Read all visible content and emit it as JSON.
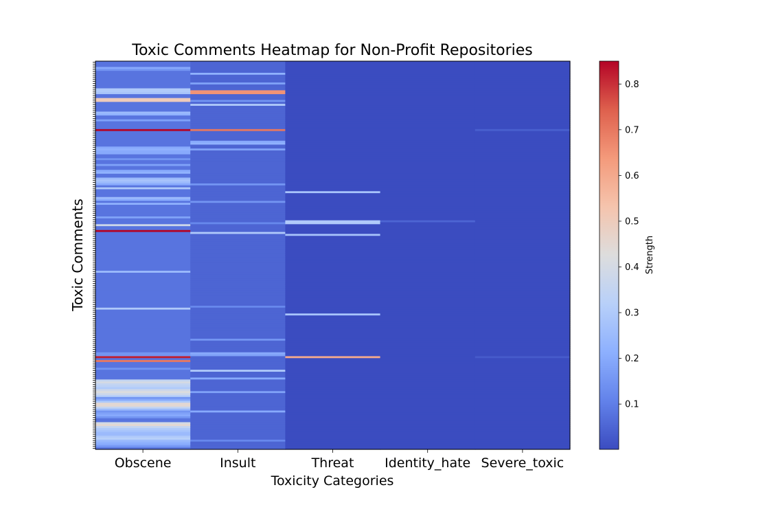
{
  "chart_data": {
    "type": "heatmap",
    "title": "Toxic Comments Heatmap for Non-Profit Repositories",
    "xlabel": "Toxicity Categories",
    "ylabel": "Toxic Comments",
    "categories": [
      "Obscene",
      "Insult",
      "Threat",
      "Identity_hate",
      "Severe_toxic"
    ],
    "colorbar": {
      "label": "Strength",
      "range": [
        0.001,
        0.85
      ],
      "ticks": [
        "0.1",
        "0.2",
        "0.3",
        "0.4",
        "0.5",
        "0.6",
        "0.7",
        "0.8"
      ],
      "colormap": "coolwarm"
    },
    "n_rows": 200,
    "base_values": [
      0.08,
      0.05,
      0.001,
      0.001,
      0.001
    ],
    "highlights": {
      "Obscene": [
        [
          3,
          0.2
        ],
        [
          4,
          0.15
        ],
        [
          14,
          0.3
        ],
        [
          15,
          0.3
        ],
        [
          16,
          0.28
        ],
        [
          19,
          0.5
        ],
        [
          20,
          0.5
        ],
        [
          26,
          0.25
        ],
        [
          27,
          0.22
        ],
        [
          30,
          0.18
        ],
        [
          35,
          0.85
        ],
        [
          44,
          0.2
        ],
        [
          45,
          0.22
        ],
        [
          46,
          0.2
        ],
        [
          47,
          0.2
        ],
        [
          50,
          0.15
        ],
        [
          53,
          0.18
        ],
        [
          56,
          0.2
        ],
        [
          57,
          0.22
        ],
        [
          60,
          0.25
        ],
        [
          61,
          0.28
        ],
        [
          62,
          0.25
        ],
        [
          63,
          0.2
        ],
        [
          65,
          0.3
        ],
        [
          70,
          0.25
        ],
        [
          71,
          0.2
        ],
        [
          73,
          0.22
        ],
        [
          80,
          0.18
        ],
        [
          84,
          0.38
        ],
        [
          87,
          0.85
        ],
        [
          108,
          0.25
        ],
        [
          127,
          0.3
        ],
        [
          150,
          0.15
        ],
        [
          151,
          0.15
        ],
        [
          152,
          0.82
        ],
        [
          154,
          0.7
        ],
        [
          158,
          0.15
        ],
        [
          164,
          0.35
        ],
        [
          165,
          0.4
        ],
        [
          166,
          0.35
        ],
        [
          167,
          0.33
        ],
        [
          168,
          0.3
        ],
        [
          169,
          0.38
        ],
        [
          170,
          0.42
        ],
        [
          171,
          0.38
        ],
        [
          172,
          0.32
        ],
        [
          173,
          0.15
        ],
        [
          174,
          0.2
        ],
        [
          175,
          0.3
        ],
        [
          176,
          0.45
        ],
        [
          177,
          0.45
        ],
        [
          178,
          0.35
        ],
        [
          179,
          0.25
        ],
        [
          180,
          0.15
        ],
        [
          181,
          0.18
        ],
        [
          182,
          0.2
        ],
        [
          183,
          0.15
        ],
        [
          186,
          0.4
        ],
        [
          187,
          0.45
        ],
        [
          188,
          0.35
        ],
        [
          189,
          0.3
        ],
        [
          190,
          0.28
        ],
        [
          191,
          0.25
        ],
        [
          192,
          0.25
        ],
        [
          193,
          0.3
        ],
        [
          194,
          0.32
        ],
        [
          195,
          0.25
        ],
        [
          196,
          0.22
        ],
        [
          197,
          0.2
        ],
        [
          198,
          0.15
        ]
      ],
      "Insult": [
        [
          6,
          0.22
        ],
        [
          11,
          0.18
        ],
        [
          15,
          0.65
        ],
        [
          16,
          0.65
        ],
        [
          20,
          0.15
        ],
        [
          22,
          0.3
        ],
        [
          35,
          0.7
        ],
        [
          41,
          0.2
        ],
        [
          42,
          0.22
        ],
        [
          45,
          0.18
        ],
        [
          63,
          0.15
        ],
        [
          72,
          0.15
        ],
        [
          83,
          0.12
        ],
        [
          88,
          0.3
        ],
        [
          126,
          0.12
        ],
        [
          143,
          0.15
        ],
        [
          150,
          0.2
        ],
        [
          151,
          0.18
        ],
        [
          159,
          0.3
        ],
        [
          163,
          0.2
        ],
        [
          170,
          0.18
        ],
        [
          180,
          0.2
        ],
        [
          195,
          0.12
        ]
      ],
      "Threat": [
        [
          67,
          0.28
        ],
        [
          82,
          0.3
        ],
        [
          83,
          0.3
        ],
        [
          89,
          0.28
        ],
        [
          130,
          0.28
        ],
        [
          152,
          0.6
        ]
      ],
      "Identity_hate": [
        [
          82,
          0.05
        ]
      ],
      "Severe_toxic": [
        [
          35,
          0.04
        ],
        [
          152,
          0.03
        ]
      ]
    }
  }
}
